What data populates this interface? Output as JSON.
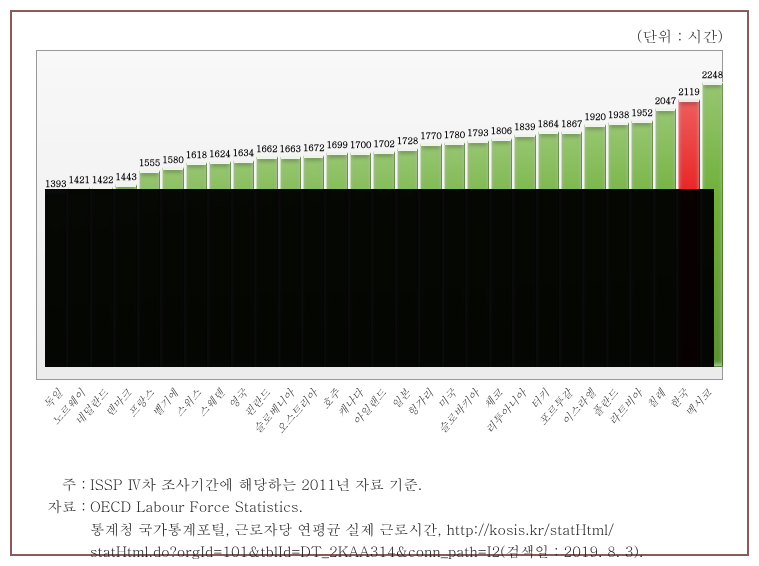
{
  "unit_label": "(단위 : 시간)",
  "chart": {
    "type": "bar",
    "ylim": [
      0,
      2400
    ],
    "baseline_band_top_value": 1400,
    "default_bar_color": "#6fb03a",
    "highlight_bar_color": "#e81c1c",
    "background_gradient_top": "#f8f8f8",
    "background_gradient_bottom": "#ececec",
    "frame_border": "#999999",
    "baseline_band_color": "#000000",
    "value_fontsize": 9,
    "xlabel_fontsize": 11,
    "xlabel_rotation_deg": -48,
    "bars": [
      {
        "label": "독일",
        "value": 1393
      },
      {
        "label": "노르웨이",
        "value": 1421
      },
      {
        "label": "네덜란드",
        "value": 1422
      },
      {
        "label": "덴마크",
        "value": 1443
      },
      {
        "label": "프랑스",
        "value": 1555
      },
      {
        "label": "벨기에",
        "value": 1580
      },
      {
        "label": "스위스",
        "value": 1618
      },
      {
        "label": "스웨덴",
        "value": 1624
      },
      {
        "label": "영국",
        "value": 1634
      },
      {
        "label": "핀란드",
        "value": 1662
      },
      {
        "label": "슬로베니아",
        "value": 1663
      },
      {
        "label": "오스트리아",
        "value": 1672
      },
      {
        "label": "호주",
        "value": 1699
      },
      {
        "label": "캐나다",
        "value": 1700
      },
      {
        "label": "아일랜드",
        "value": 1702
      },
      {
        "label": "일본",
        "value": 1728
      },
      {
        "label": "헝가리",
        "value": 1770
      },
      {
        "label": "미국",
        "value": 1780
      },
      {
        "label": "슬로바키아",
        "value": 1793
      },
      {
        "label": "체코",
        "value": 1806
      },
      {
        "label": "리투아니아",
        "value": 1839
      },
      {
        "label": "터키",
        "value": 1864
      },
      {
        "label": "포르투갈",
        "value": 1867
      },
      {
        "label": "이스라엘",
        "value": 1920
      },
      {
        "label": "폴란드",
        "value": 1938
      },
      {
        "label": "라트비아",
        "value": 1952
      },
      {
        "label": "칠레",
        "value": 2047
      },
      {
        "label": "한국",
        "value": 2119,
        "highlight": true
      },
      {
        "label": "멕시코",
        "value": 2248
      }
    ]
  },
  "notes": {
    "note_label": "주 :",
    "note_text": "ISSP Ⅳ차 조사기간에 해당하는 2011년 자료 기준.",
    "source_label": "자료 :",
    "source_line1": "OECD Labour Force Statistics.",
    "source_line2": "통계청 국가통계포털, 근로자당 연평균 실제 근로시간, http://kosis.kr/statHtml/",
    "source_line3": "statHtml.do?orgId=101&tblId=DT_2KAA314&conn_path=I2(검색일 : 2019. 8. 3)."
  }
}
